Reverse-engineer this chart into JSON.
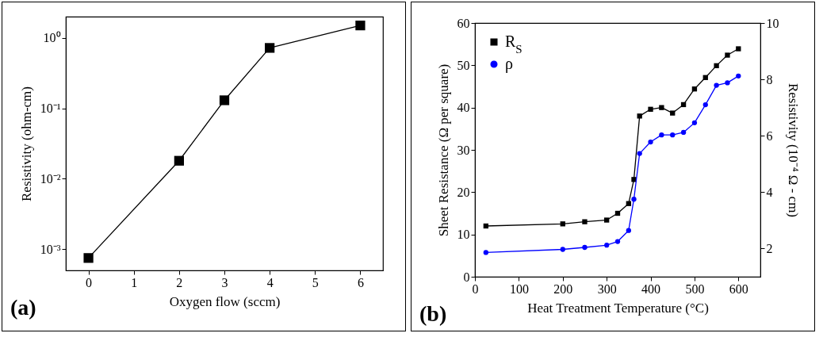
{
  "chart_data": [
    {
      "type": "line",
      "xlabel": "Oxygen flow (sccm)",
      "ylabel": "Resistivity (ohm-cm)",
      "log": "y",
      "marker": "square",
      "x": [
        0,
        2,
        3,
        4,
        6
      ],
      "series": [
        {
          "color": "#000000",
          "values": [
            0.00075,
            0.018,
            0.13,
            0.72,
            1.5
          ]
        }
      ],
      "xlim": [
        -0.5,
        6.5
      ],
      "xticks": [
        0,
        1,
        2,
        3,
        4,
        5,
        6
      ],
      "ylim": [
        0.0005,
        2
      ],
      "yticks": [
        {
          "value": 0.001,
          "label": "10⁻³"
        },
        {
          "value": 0.01,
          "label": "10⁻²"
        },
        {
          "value": 0.1,
          "label": "10⁻¹"
        },
        {
          "value": 1,
          "label": "10⁰"
        }
      ],
      "annotations": [
        "(a)"
      ]
    },
    {
      "type": "line",
      "xlabel": "Heat Treatment Temperature (°C)",
      "ylabel": "Sheet Resistance (Ω per square)",
      "y2label": "Resistivity (10⁻⁴ Ω - cm)",
      "legend": "top left",
      "x": [
        25,
        200,
        250,
        300,
        325,
        350,
        362,
        375,
        400,
        425,
        450,
        475,
        500,
        525,
        550,
        575,
        600
      ],
      "series": [
        {
          "name": "R$_{S}$",
          "color": "#000000",
          "marker": "square",
          "values": [
            12.0,
            12.5,
            13.0,
            13.4,
            15.0,
            17.3,
            23.0,
            38.0,
            39.6,
            40.0,
            38.7,
            40.7,
            44.4,
            47.1,
            49.9,
            52.4,
            53.9
          ]
        },
        {
          "name": "ρ",
          "color": "#0000ff",
          "marker": "circle",
          "axis": "y2",
          "values": [
            1.86,
            1.97,
            2.04,
            2.12,
            2.25,
            2.64,
            3.75,
            5.37,
            5.78,
            6.03,
            6.03,
            6.12,
            6.46,
            7.1,
            7.79,
            7.88,
            8.12
          ]
        }
      ],
      "xlim": [
        0,
        650
      ],
      "xticks": [
        0,
        100,
        200,
        300,
        400,
        500,
        600
      ],
      "ylim": [
        0,
        60
      ],
      "yticks": [
        0,
        10,
        20,
        30,
        40,
        50,
        60
      ],
      "y2lim": [
        1,
        10
      ],
      "y2ticks": [
        2,
        4,
        6,
        8,
        10
      ],
      "annotations": [
        "(b)"
      ]
    }
  ]
}
